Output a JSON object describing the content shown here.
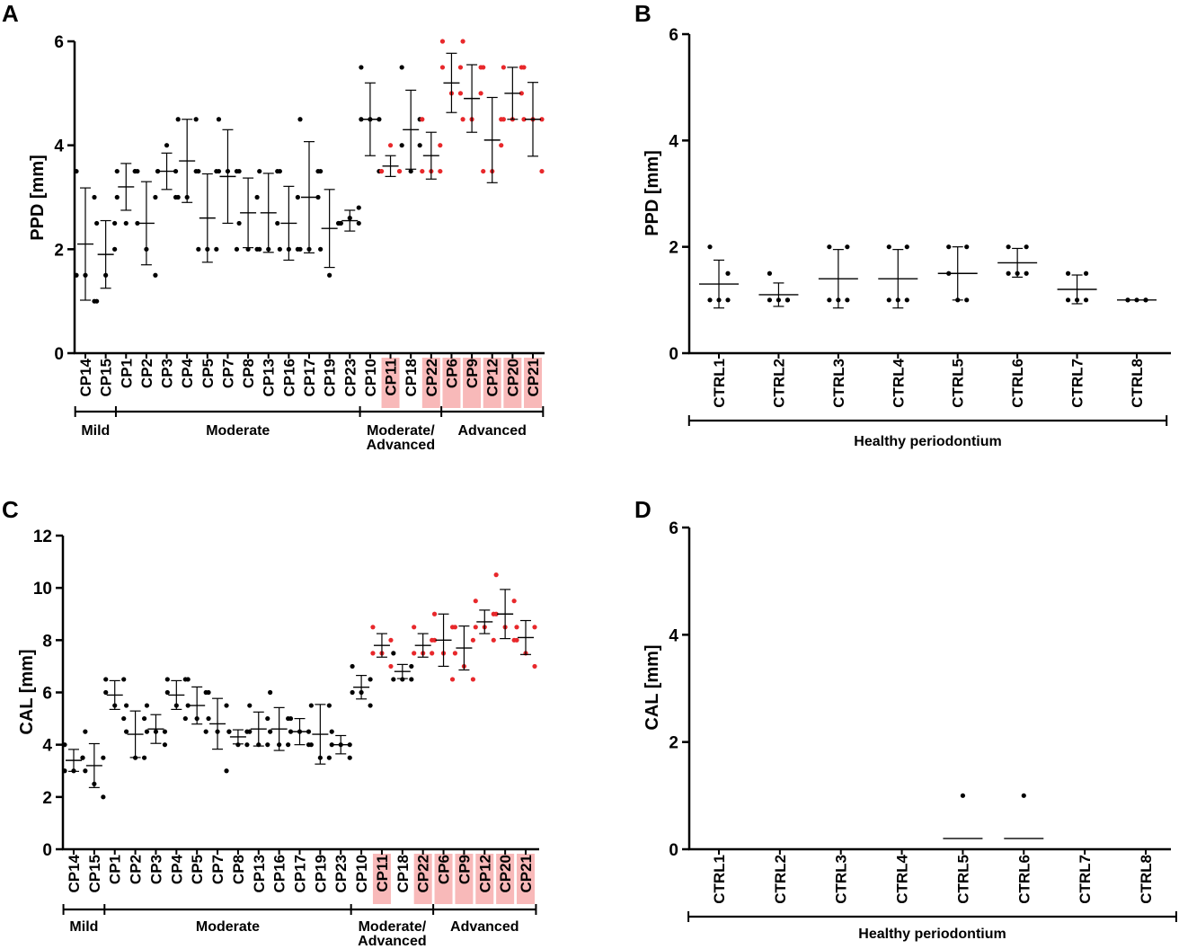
{
  "colors": {
    "black": "#000000",
    "red": "#e8282b",
    "highlight": "#f8b9b9"
  },
  "chart_data": [
    {
      "panel": "A",
      "type": "scatter",
      "ylabel": "PPD [mm]",
      "ylim": [
        0,
        6
      ],
      "yticks": [
        "0",
        "2",
        "4",
        "6"
      ],
      "categories": [
        "CP14",
        "CP15",
        "CP1",
        "CP2",
        "CP3",
        "CP4",
        "CP5",
        "CP7",
        "CP8",
        "CP13",
        "CP16",
        "CP17",
        "CP19",
        "CP23",
        "CP10",
        "CP11",
        "CP18",
        "CP22",
        "CP6",
        "CP9",
        "CP12",
        "CP20",
        "CP21"
      ],
      "highlighted": [
        "CP11",
        "CP22",
        "CP6",
        "CP9",
        "CP12",
        "CP20",
        "CP21"
      ],
      "means": [
        2.1,
        1.9,
        3.2,
        2.5,
        3.5,
        3.7,
        2.6,
        3.4,
        2.7,
        2.7,
        2.5,
        3.0,
        2.4,
        2.55,
        4.5,
        3.6,
        4.3,
        3.8,
        5.2,
        4.9,
        4.1,
        5.0,
        4.5
      ],
      "sd": [
        1.08,
        0.65,
        0.45,
        0.8,
        0.35,
        0.8,
        0.85,
        0.9,
        0.67,
        0.76,
        0.71,
        1.07,
        0.75,
        0.2,
        0.7,
        0.2,
        0.76,
        0.45,
        0.57,
        0.65,
        0.82,
        0.5,
        0.71
      ],
      "points": [
        [
          3.5,
          3.0,
          1.5,
          1.5,
          1.0
        ],
        [
          2.5,
          2.5,
          1.0,
          1.5,
          2.0
        ],
        [
          3.5,
          3.5,
          3.0,
          2.5,
          3.5
        ],
        [
          3.5,
          3.0,
          2.5,
          2.0,
          1.5
        ],
        [
          3.5,
          3.5,
          3.5,
          4.0,
          3.0
        ],
        [
          4.5,
          4.5,
          3.0,
          3.0,
          3.5
        ],
        [
          3.5,
          3.5,
          2.0,
          2.0,
          2.0
        ],
        [
          4.5,
          3.5,
          3.5,
          3.5,
          2.0
        ],
        [
          3.5,
          3.0,
          2.5,
          2.0,
          2.0
        ],
        [
          3.5,
          3.5,
          2.0,
          2.0,
          2.5
        ],
        [
          3.5,
          3.0,
          2.0,
          2.0,
          2.0
        ],
        [
          4.5,
          3.5,
          2.0,
          2.0,
          3.0
        ],
        [
          3.5,
          2.5,
          2.0,
          1.5,
          2.5
        ],
        [
          2.5,
          2.5,
          2.5,
          2.6,
          2.8
        ],
        [
          5.5,
          4.5,
          4.5,
          4.5,
          3.5
        ],
        [
          3.5,
          3.5,
          3.5,
          4.0,
          3.5
        ],
        [
          5.5,
          4.5,
          4.0,
          3.5,
          4.0
        ],
        [
          4.5,
          3.5,
          3.5,
          3.5,
          4.0
        ],
        [
          6.0,
          5.5,
          5.5,
          5.0,
          5.0
        ],
        [
          6.0,
          5.5,
          4.5,
          4.5,
          5.0
        ],
        [
          5.5,
          4.5,
          3.5,
          3.5,
          4.0
        ],
        [
          5.5,
          5.5,
          4.5,
          4.5,
          5.0
        ],
        [
          5.5,
          4.5,
          4.5,
          4.5,
          3.5
        ]
      ],
      "groups": [
        {
          "label": "Mild",
          "from": 0,
          "to": 1
        },
        {
          "label": "Moderate",
          "from": 2,
          "to": 13
        },
        {
          "label": "Moderate/",
          "label2": "Advanced",
          "from": 14,
          "to": 17
        },
        {
          "label": "Advanced",
          "from": 18,
          "to": 22
        }
      ]
    },
    {
      "panel": "B",
      "type": "scatter",
      "ylabel": "PPD [mm]",
      "ylim": [
        0,
        6
      ],
      "yticks": [
        "0",
        "2",
        "4",
        "6"
      ],
      "categories": [
        "CTRL1",
        "CTRL2",
        "CTRL3",
        "CTRL4",
        "CTRL5",
        "CTRL6",
        "CTRL7",
        "CTRL8"
      ],
      "means": [
        1.3,
        1.1,
        1.4,
        1.4,
        1.5,
        1.7,
        1.2,
        1.0
      ],
      "sd": [
        0.45,
        0.22,
        0.55,
        0.55,
        0.5,
        0.27,
        0.27,
        0.0
      ],
      "points": [
        [
          2.0,
          1.5,
          1.0,
          1.0,
          1.0
        ],
        [
          1.5,
          1.0,
          1.0,
          1.0,
          1.0
        ],
        [
          2.0,
          2.0,
          1.0,
          1.0,
          1.0
        ],
        [
          2.0,
          2.0,
          1.0,
          1.0,
          1.0
        ],
        [
          2.0,
          2.0,
          1.5,
          1.0,
          1.0
        ],
        [
          2.0,
          2.0,
          1.5,
          1.5,
          1.5
        ],
        [
          1.5,
          1.5,
          1.0,
          1.0,
          1.0
        ],
        [
          1.0,
          1.0,
          1.0,
          1.0,
          1.0
        ]
      ],
      "groups": [
        {
          "label": "Healthy periodontium",
          "from": 0,
          "to": 7
        }
      ]
    },
    {
      "panel": "C",
      "type": "scatter",
      "ylabel": "CAL [mm]",
      "ylim": [
        0,
        12
      ],
      "yticks": [
        "0",
        "2",
        "4",
        "6",
        "8",
        "10",
        "12"
      ],
      "categories": [
        "CP14",
        "CP15",
        "CP1",
        "CP2",
        "CP3",
        "CP4",
        "CP5",
        "CP7",
        "CP8",
        "CP13",
        "CP16",
        "CP17",
        "CP19",
        "CP23",
        "CP10",
        "CP11",
        "CP18",
        "CP22",
        "CP6",
        "CP9",
        "CP12",
        "CP20",
        "CP21"
      ],
      "highlighted": [
        "CP11",
        "CP22",
        "CP6",
        "CP9",
        "CP12",
        "CP20",
        "CP21"
      ],
      "means": [
        3.4,
        3.2,
        5.9,
        4.4,
        4.6,
        5.9,
        5.5,
        4.8,
        4.3,
        4.6,
        4.6,
        4.5,
        4.4,
        4.0,
        6.2,
        7.8,
        6.8,
        7.8,
        8.0,
        7.7,
        8.7,
        9.0,
        8.1
      ],
      "sd": [
        0.42,
        0.84,
        0.55,
        0.89,
        0.55,
        0.55,
        0.71,
        0.97,
        0.27,
        0.65,
        0.82,
        0.5,
        1.14,
        0.35,
        0.45,
        0.45,
        0.27,
        0.45,
        1.0,
        0.84,
        0.45,
        0.94,
        0.65
      ],
      "points": [
        [
          4.0,
          3.5,
          3.0,
          3.0,
          3.5
        ],
        [
          4.5,
          3.5,
          3.0,
          2.5,
          2.0
        ],
        [
          6.5,
          6.5,
          6.0,
          5.5,
          5.0
        ],
        [
          5.5,
          5.0,
          4.5,
          3.5,
          3.5
        ],
        [
          5.5,
          4.5,
          4.5,
          4.5,
          4.0
        ],
        [
          6.5,
          6.5,
          6.0,
          5.5,
          5.0
        ],
        [
          6.5,
          6.0,
          5.5,
          5.0,
          4.5
        ],
        [
          6.0,
          5.5,
          5.0,
          4.5,
          3.0
        ],
        [
          4.5,
          4.5,
          4.5,
          4.0,
          4.0
        ],
        [
          5.5,
          5.0,
          4.5,
          4.0,
          4.0
        ],
        [
          6.0,
          5.0,
          4.5,
          4.0,
          4.0
        ],
        [
          5.0,
          4.5,
          4.5,
          4.5,
          4.0
        ],
        [
          5.5,
          5.5,
          4.0,
          3.5,
          3.5
        ],
        [
          4.5,
          4.0,
          4.0,
          4.0,
          3.5
        ],
        [
          7.0,
          6.5,
          6.0,
          6.0,
          5.5
        ],
        [
          8.5,
          8.0,
          7.5,
          7.5,
          7.0
        ],
        [
          7.5,
          7.0,
          6.5,
          6.5,
          6.5
        ],
        [
          8.5,
          8.0,
          7.5,
          7.5,
          7.5
        ],
        [
          9.0,
          8.5,
          8.0,
          7.5,
          6.5
        ],
        [
          8.5,
          8.0,
          7.5,
          7.0,
          6.5
        ],
        [
          9.5,
          9.0,
          8.5,
          8.5,
          8.0
        ],
        [
          10.5,
          9.5,
          9.0,
          8.5,
          8.0
        ],
        [
          8.5,
          8.5,
          8.0,
          7.5,
          7.0
        ]
      ],
      "groups": [
        {
          "label": "Mild",
          "from": 0,
          "to": 1
        },
        {
          "label": "Moderate",
          "from": 2,
          "to": 13
        },
        {
          "label": "Moderate/",
          "label2": "Advanced",
          "from": 14,
          "to": 17
        },
        {
          "label": "Advanced",
          "from": 18,
          "to": 22
        }
      ]
    },
    {
      "panel": "D",
      "type": "scatter",
      "ylabel": "CAL [mm]",
      "ylim": [
        0,
        6
      ],
      "yticks": [
        "0",
        "2",
        "4",
        "6"
      ],
      "categories": [
        "CTRL1",
        "CTRL2",
        "CTRL3",
        "CTRL4",
        "CTRL5",
        "CTRL6",
        "CTRL7",
        "CTRL8"
      ],
      "means": [
        null,
        null,
        null,
        null,
        0.2,
        0.2,
        null,
        null
      ],
      "sd": [
        null,
        null,
        null,
        null,
        null,
        null,
        null,
        null
      ],
      "points": [
        [],
        [],
        [],
        [],
        [
          1.0
        ],
        [
          1.0
        ],
        [],
        []
      ],
      "groups": [
        {
          "label": "Healthy periodontium",
          "from": 0,
          "to": 7
        }
      ]
    }
  ]
}
